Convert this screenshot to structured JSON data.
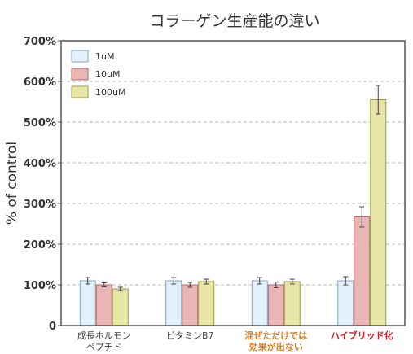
{
  "chart_data": {
    "type": "bar",
    "title": "コラーゲン生産能の違い",
    "ylabel": "% of control",
    "xlabel": "",
    "ylim": [
      0,
      700
    ],
    "yticks": [
      "0",
      "100%",
      "200%",
      "300%",
      "400%",
      "500%",
      "600%",
      "700%"
    ],
    "ytick_values": [
      0,
      100,
      200,
      300,
      400,
      500,
      600,
      700
    ],
    "grid": true,
    "legend_position": "top-left",
    "categories": [
      {
        "lines": [
          "成長ホルモン",
          "ペプチド"
        ],
        "style": "normal"
      },
      {
        "lines": [
          "ビタミンB7"
        ],
        "style": "normal"
      },
      {
        "lines": [
          "混ぜただけでは",
          "効果が出ない"
        ],
        "style": "orange"
      },
      {
        "lines": [
          "ハイブリッド化"
        ],
        "style": "red"
      }
    ],
    "series": [
      {
        "name": "1uM",
        "values": [
          110,
          110,
          110,
          110
        ],
        "errors": [
          8,
          8,
          8,
          10
        ],
        "fill": "#e3f0fa",
        "stroke": "#7fa7c6"
      },
      {
        "name": "10uM",
        "values": [
          100,
          100,
          100,
          267
        ],
        "errors": [
          5,
          6,
          7,
          25
        ],
        "fill": "#e9b5b5",
        "stroke": "#b06a6a"
      },
      {
        "name": "100uM",
        "values": [
          90,
          108,
          108,
          555
        ],
        "errors": [
          4,
          6,
          6,
          35
        ],
        "fill": "#e8e6a6",
        "stroke": "#9e9a4a"
      }
    ],
    "colors": {
      "orange_label": "#d9822b",
      "red_label": "#e8141b",
      "grid": "#bbbbbb",
      "axis": "#555555"
    }
  }
}
